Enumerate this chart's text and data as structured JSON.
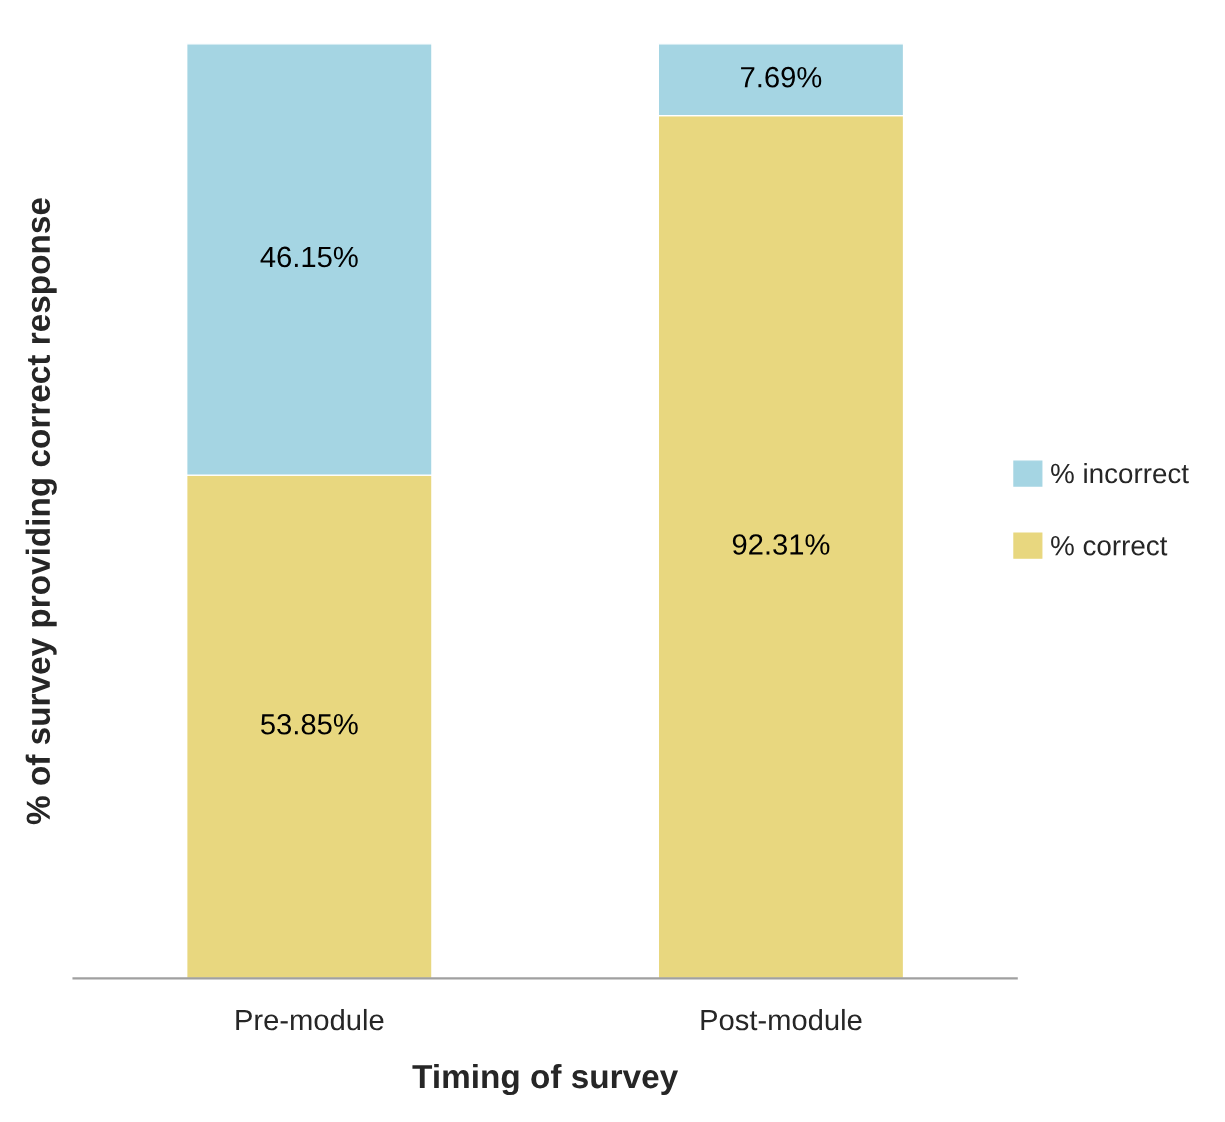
{
  "chart_data": {
    "type": "bar",
    "stacked": true,
    "xlabel": "Timing of survey",
    "ylabel": "% of survey providing correct response",
    "categories": [
      "Pre-module",
      "Post-module"
    ],
    "series": [
      {
        "name": "% correct",
        "color": "#e8d77f",
        "values": [
          53.85,
          92.31
        ],
        "value_labels": [
          "53.85%",
          "92.31%"
        ]
      },
      {
        "name": "% incorrect",
        "color": "#a5d5e3",
        "values": [
          46.15,
          7.69
        ],
        "value_labels": [
          "46.15%",
          "7.69%"
        ]
      }
    ],
    "legend": "right"
  }
}
